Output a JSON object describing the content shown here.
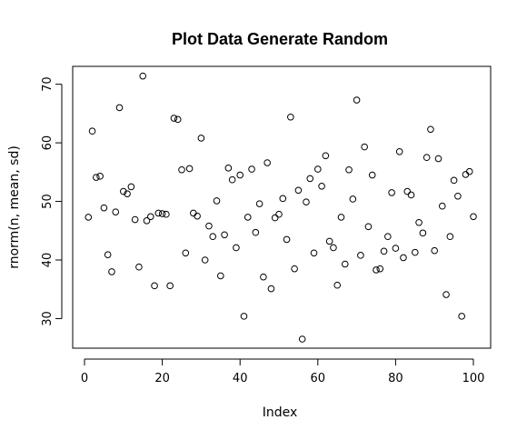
{
  "chart_data": {
    "type": "scatter",
    "title": "Plot Data Generate Random",
    "xlabel": "Index",
    "ylabel": "rnorm(n, mean, sd)",
    "xlim": [
      0,
      100
    ],
    "ylim": [
      26.5,
      71.5
    ],
    "xticks": [
      0,
      20,
      40,
      60,
      80,
      100
    ],
    "yticks": [
      30,
      40,
      50,
      60,
      70
    ],
    "grid": false,
    "marker": "open-circle",
    "x": [
      1,
      2,
      3,
      4,
      5,
      6,
      7,
      8,
      9,
      10,
      11,
      12,
      13,
      14,
      15,
      16,
      17,
      18,
      19,
      20,
      21,
      22,
      23,
      24,
      25,
      26,
      27,
      28,
      29,
      30,
      31,
      32,
      33,
      34,
      35,
      36,
      37,
      38,
      39,
      40,
      41,
      42,
      43,
      44,
      45,
      46,
      47,
      48,
      49,
      50,
      51,
      52,
      53,
      54,
      55,
      56,
      57,
      58,
      59,
      60,
      61,
      62,
      63,
      64,
      65,
      66,
      67,
      68,
      69,
      70,
      71,
      72,
      73,
      74,
      75,
      76,
      77,
      78,
      79,
      80,
      81,
      82,
      83,
      84,
      85,
      86,
      87,
      88,
      89,
      90,
      91,
      92,
      93,
      94,
      95,
      96,
      97,
      98,
      99,
      100
    ],
    "y": [
      47.3,
      62.0,
      54.1,
      54.3,
      48.9,
      40.9,
      38.0,
      48.2,
      66.0,
      51.7,
      51.3,
      52.5,
      46.9,
      38.8,
      71.4,
      46.7,
      47.4,
      35.6,
      48.0,
      47.9,
      47.8,
      35.6,
      64.2,
      64.0,
      55.4,
      41.2,
      55.6,
      48.0,
      47.5,
      60.8,
      40.0,
      45.8,
      44.0,
      50.1,
      37.3,
      44.3,
      55.7,
      53.7,
      42.1,
      54.5,
      30.4,
      47.3,
      55.5,
      44.7,
      49.6,
      37.1,
      56.6,
      35.1,
      47.2,
      47.8,
      50.5,
      43.5,
      64.4,
      38.5,
      51.9,
      26.5,
      49.9,
      53.9,
      41.2,
      55.5,
      52.6,
      57.8,
      43.2,
      42.1,
      35.7,
      47.3,
      39.3,
      55.4,
      50.4,
      67.3,
      40.8,
      59.3,
      45.7,
      54.5,
      38.3,
      38.5,
      41.5,
      44.0,
      51.5,
      42.0,
      58.5,
      40.4,
      51.7,
      51.1,
      41.3,
      46.4,
      44.6,
      57.5,
      62.3,
      41.6,
      57.3,
      49.2,
      34.1,
      44.0,
      53.6,
      50.9,
      30.4,
      54.6,
      55.1,
      47.4
    ]
  }
}
